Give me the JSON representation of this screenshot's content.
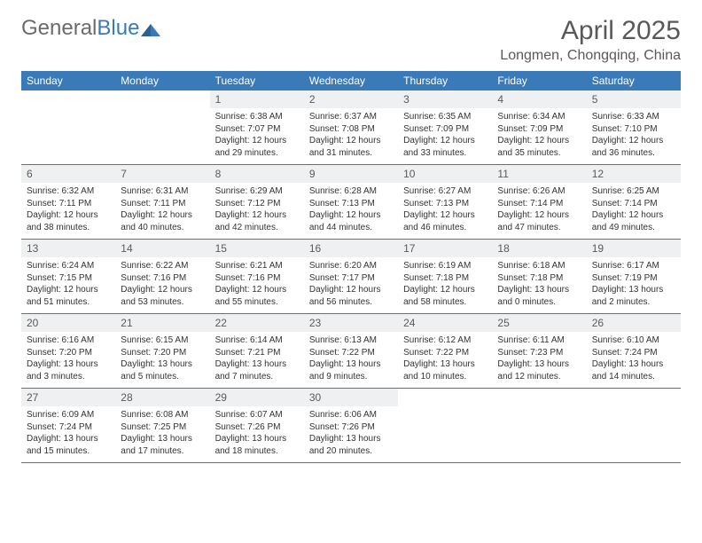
{
  "brand": {
    "general": "General",
    "blue": "Blue"
  },
  "title": "April 2025",
  "location": "Longmen, Chongqing, China",
  "colors": {
    "header_bg": "#3a7ab8",
    "header_text": "#ffffff",
    "daynum_bg": "#eef0f1",
    "border": "#3a7ab8",
    "title_color": "#595959",
    "body_text": "#333333",
    "logo_gray": "#6b6b6b"
  },
  "typography": {
    "title_fontsize": 30,
    "location_fontsize": 16,
    "header_fontsize": 12,
    "body_fontsize": 10
  },
  "day_names": [
    "Sunday",
    "Monday",
    "Tuesday",
    "Wednesday",
    "Thursday",
    "Friday",
    "Saturday"
  ],
  "weeks": [
    [
      {
        "day": "",
        "sunrise": "",
        "sunset": "",
        "daylight1": "",
        "daylight2": ""
      },
      {
        "day": "",
        "sunrise": "",
        "sunset": "",
        "daylight1": "",
        "daylight2": ""
      },
      {
        "day": "1",
        "sunrise": "Sunrise: 6:38 AM",
        "sunset": "Sunset: 7:07 PM",
        "daylight1": "Daylight: 12 hours",
        "daylight2": "and 29 minutes."
      },
      {
        "day": "2",
        "sunrise": "Sunrise: 6:37 AM",
        "sunset": "Sunset: 7:08 PM",
        "daylight1": "Daylight: 12 hours",
        "daylight2": "and 31 minutes."
      },
      {
        "day": "3",
        "sunrise": "Sunrise: 6:35 AM",
        "sunset": "Sunset: 7:09 PM",
        "daylight1": "Daylight: 12 hours",
        "daylight2": "and 33 minutes."
      },
      {
        "day": "4",
        "sunrise": "Sunrise: 6:34 AM",
        "sunset": "Sunset: 7:09 PM",
        "daylight1": "Daylight: 12 hours",
        "daylight2": "and 35 minutes."
      },
      {
        "day": "5",
        "sunrise": "Sunrise: 6:33 AM",
        "sunset": "Sunset: 7:10 PM",
        "daylight1": "Daylight: 12 hours",
        "daylight2": "and 36 minutes."
      }
    ],
    [
      {
        "day": "6",
        "sunrise": "Sunrise: 6:32 AM",
        "sunset": "Sunset: 7:11 PM",
        "daylight1": "Daylight: 12 hours",
        "daylight2": "and 38 minutes."
      },
      {
        "day": "7",
        "sunrise": "Sunrise: 6:31 AM",
        "sunset": "Sunset: 7:11 PM",
        "daylight1": "Daylight: 12 hours",
        "daylight2": "and 40 minutes."
      },
      {
        "day": "8",
        "sunrise": "Sunrise: 6:29 AM",
        "sunset": "Sunset: 7:12 PM",
        "daylight1": "Daylight: 12 hours",
        "daylight2": "and 42 minutes."
      },
      {
        "day": "9",
        "sunrise": "Sunrise: 6:28 AM",
        "sunset": "Sunset: 7:13 PM",
        "daylight1": "Daylight: 12 hours",
        "daylight2": "and 44 minutes."
      },
      {
        "day": "10",
        "sunrise": "Sunrise: 6:27 AM",
        "sunset": "Sunset: 7:13 PM",
        "daylight1": "Daylight: 12 hours",
        "daylight2": "and 46 minutes."
      },
      {
        "day": "11",
        "sunrise": "Sunrise: 6:26 AM",
        "sunset": "Sunset: 7:14 PM",
        "daylight1": "Daylight: 12 hours",
        "daylight2": "and 47 minutes."
      },
      {
        "day": "12",
        "sunrise": "Sunrise: 6:25 AM",
        "sunset": "Sunset: 7:14 PM",
        "daylight1": "Daylight: 12 hours",
        "daylight2": "and 49 minutes."
      }
    ],
    [
      {
        "day": "13",
        "sunrise": "Sunrise: 6:24 AM",
        "sunset": "Sunset: 7:15 PM",
        "daylight1": "Daylight: 12 hours",
        "daylight2": "and 51 minutes."
      },
      {
        "day": "14",
        "sunrise": "Sunrise: 6:22 AM",
        "sunset": "Sunset: 7:16 PM",
        "daylight1": "Daylight: 12 hours",
        "daylight2": "and 53 minutes."
      },
      {
        "day": "15",
        "sunrise": "Sunrise: 6:21 AM",
        "sunset": "Sunset: 7:16 PM",
        "daylight1": "Daylight: 12 hours",
        "daylight2": "and 55 minutes."
      },
      {
        "day": "16",
        "sunrise": "Sunrise: 6:20 AM",
        "sunset": "Sunset: 7:17 PM",
        "daylight1": "Daylight: 12 hours",
        "daylight2": "and 56 minutes."
      },
      {
        "day": "17",
        "sunrise": "Sunrise: 6:19 AM",
        "sunset": "Sunset: 7:18 PM",
        "daylight1": "Daylight: 12 hours",
        "daylight2": "and 58 minutes."
      },
      {
        "day": "18",
        "sunrise": "Sunrise: 6:18 AM",
        "sunset": "Sunset: 7:18 PM",
        "daylight1": "Daylight: 13 hours",
        "daylight2": "and 0 minutes."
      },
      {
        "day": "19",
        "sunrise": "Sunrise: 6:17 AM",
        "sunset": "Sunset: 7:19 PM",
        "daylight1": "Daylight: 13 hours",
        "daylight2": "and 2 minutes."
      }
    ],
    [
      {
        "day": "20",
        "sunrise": "Sunrise: 6:16 AM",
        "sunset": "Sunset: 7:20 PM",
        "daylight1": "Daylight: 13 hours",
        "daylight2": "and 3 minutes."
      },
      {
        "day": "21",
        "sunrise": "Sunrise: 6:15 AM",
        "sunset": "Sunset: 7:20 PM",
        "daylight1": "Daylight: 13 hours",
        "daylight2": "and 5 minutes."
      },
      {
        "day": "22",
        "sunrise": "Sunrise: 6:14 AM",
        "sunset": "Sunset: 7:21 PM",
        "daylight1": "Daylight: 13 hours",
        "daylight2": "and 7 minutes."
      },
      {
        "day": "23",
        "sunrise": "Sunrise: 6:13 AM",
        "sunset": "Sunset: 7:22 PM",
        "daylight1": "Daylight: 13 hours",
        "daylight2": "and 9 minutes."
      },
      {
        "day": "24",
        "sunrise": "Sunrise: 6:12 AM",
        "sunset": "Sunset: 7:22 PM",
        "daylight1": "Daylight: 13 hours",
        "daylight2": "and 10 minutes."
      },
      {
        "day": "25",
        "sunrise": "Sunrise: 6:11 AM",
        "sunset": "Sunset: 7:23 PM",
        "daylight1": "Daylight: 13 hours",
        "daylight2": "and 12 minutes."
      },
      {
        "day": "26",
        "sunrise": "Sunrise: 6:10 AM",
        "sunset": "Sunset: 7:24 PM",
        "daylight1": "Daylight: 13 hours",
        "daylight2": "and 14 minutes."
      }
    ],
    [
      {
        "day": "27",
        "sunrise": "Sunrise: 6:09 AM",
        "sunset": "Sunset: 7:24 PM",
        "daylight1": "Daylight: 13 hours",
        "daylight2": "and 15 minutes."
      },
      {
        "day": "28",
        "sunrise": "Sunrise: 6:08 AM",
        "sunset": "Sunset: 7:25 PM",
        "daylight1": "Daylight: 13 hours",
        "daylight2": "and 17 minutes."
      },
      {
        "day": "29",
        "sunrise": "Sunrise: 6:07 AM",
        "sunset": "Sunset: 7:26 PM",
        "daylight1": "Daylight: 13 hours",
        "daylight2": "and 18 minutes."
      },
      {
        "day": "30",
        "sunrise": "Sunrise: 6:06 AM",
        "sunset": "Sunset: 7:26 PM",
        "daylight1": "Daylight: 13 hours",
        "daylight2": "and 20 minutes."
      },
      {
        "day": "",
        "sunrise": "",
        "sunset": "",
        "daylight1": "",
        "daylight2": ""
      },
      {
        "day": "",
        "sunrise": "",
        "sunset": "",
        "daylight1": "",
        "daylight2": ""
      },
      {
        "day": "",
        "sunrise": "",
        "sunset": "",
        "daylight1": "",
        "daylight2": ""
      }
    ]
  ]
}
